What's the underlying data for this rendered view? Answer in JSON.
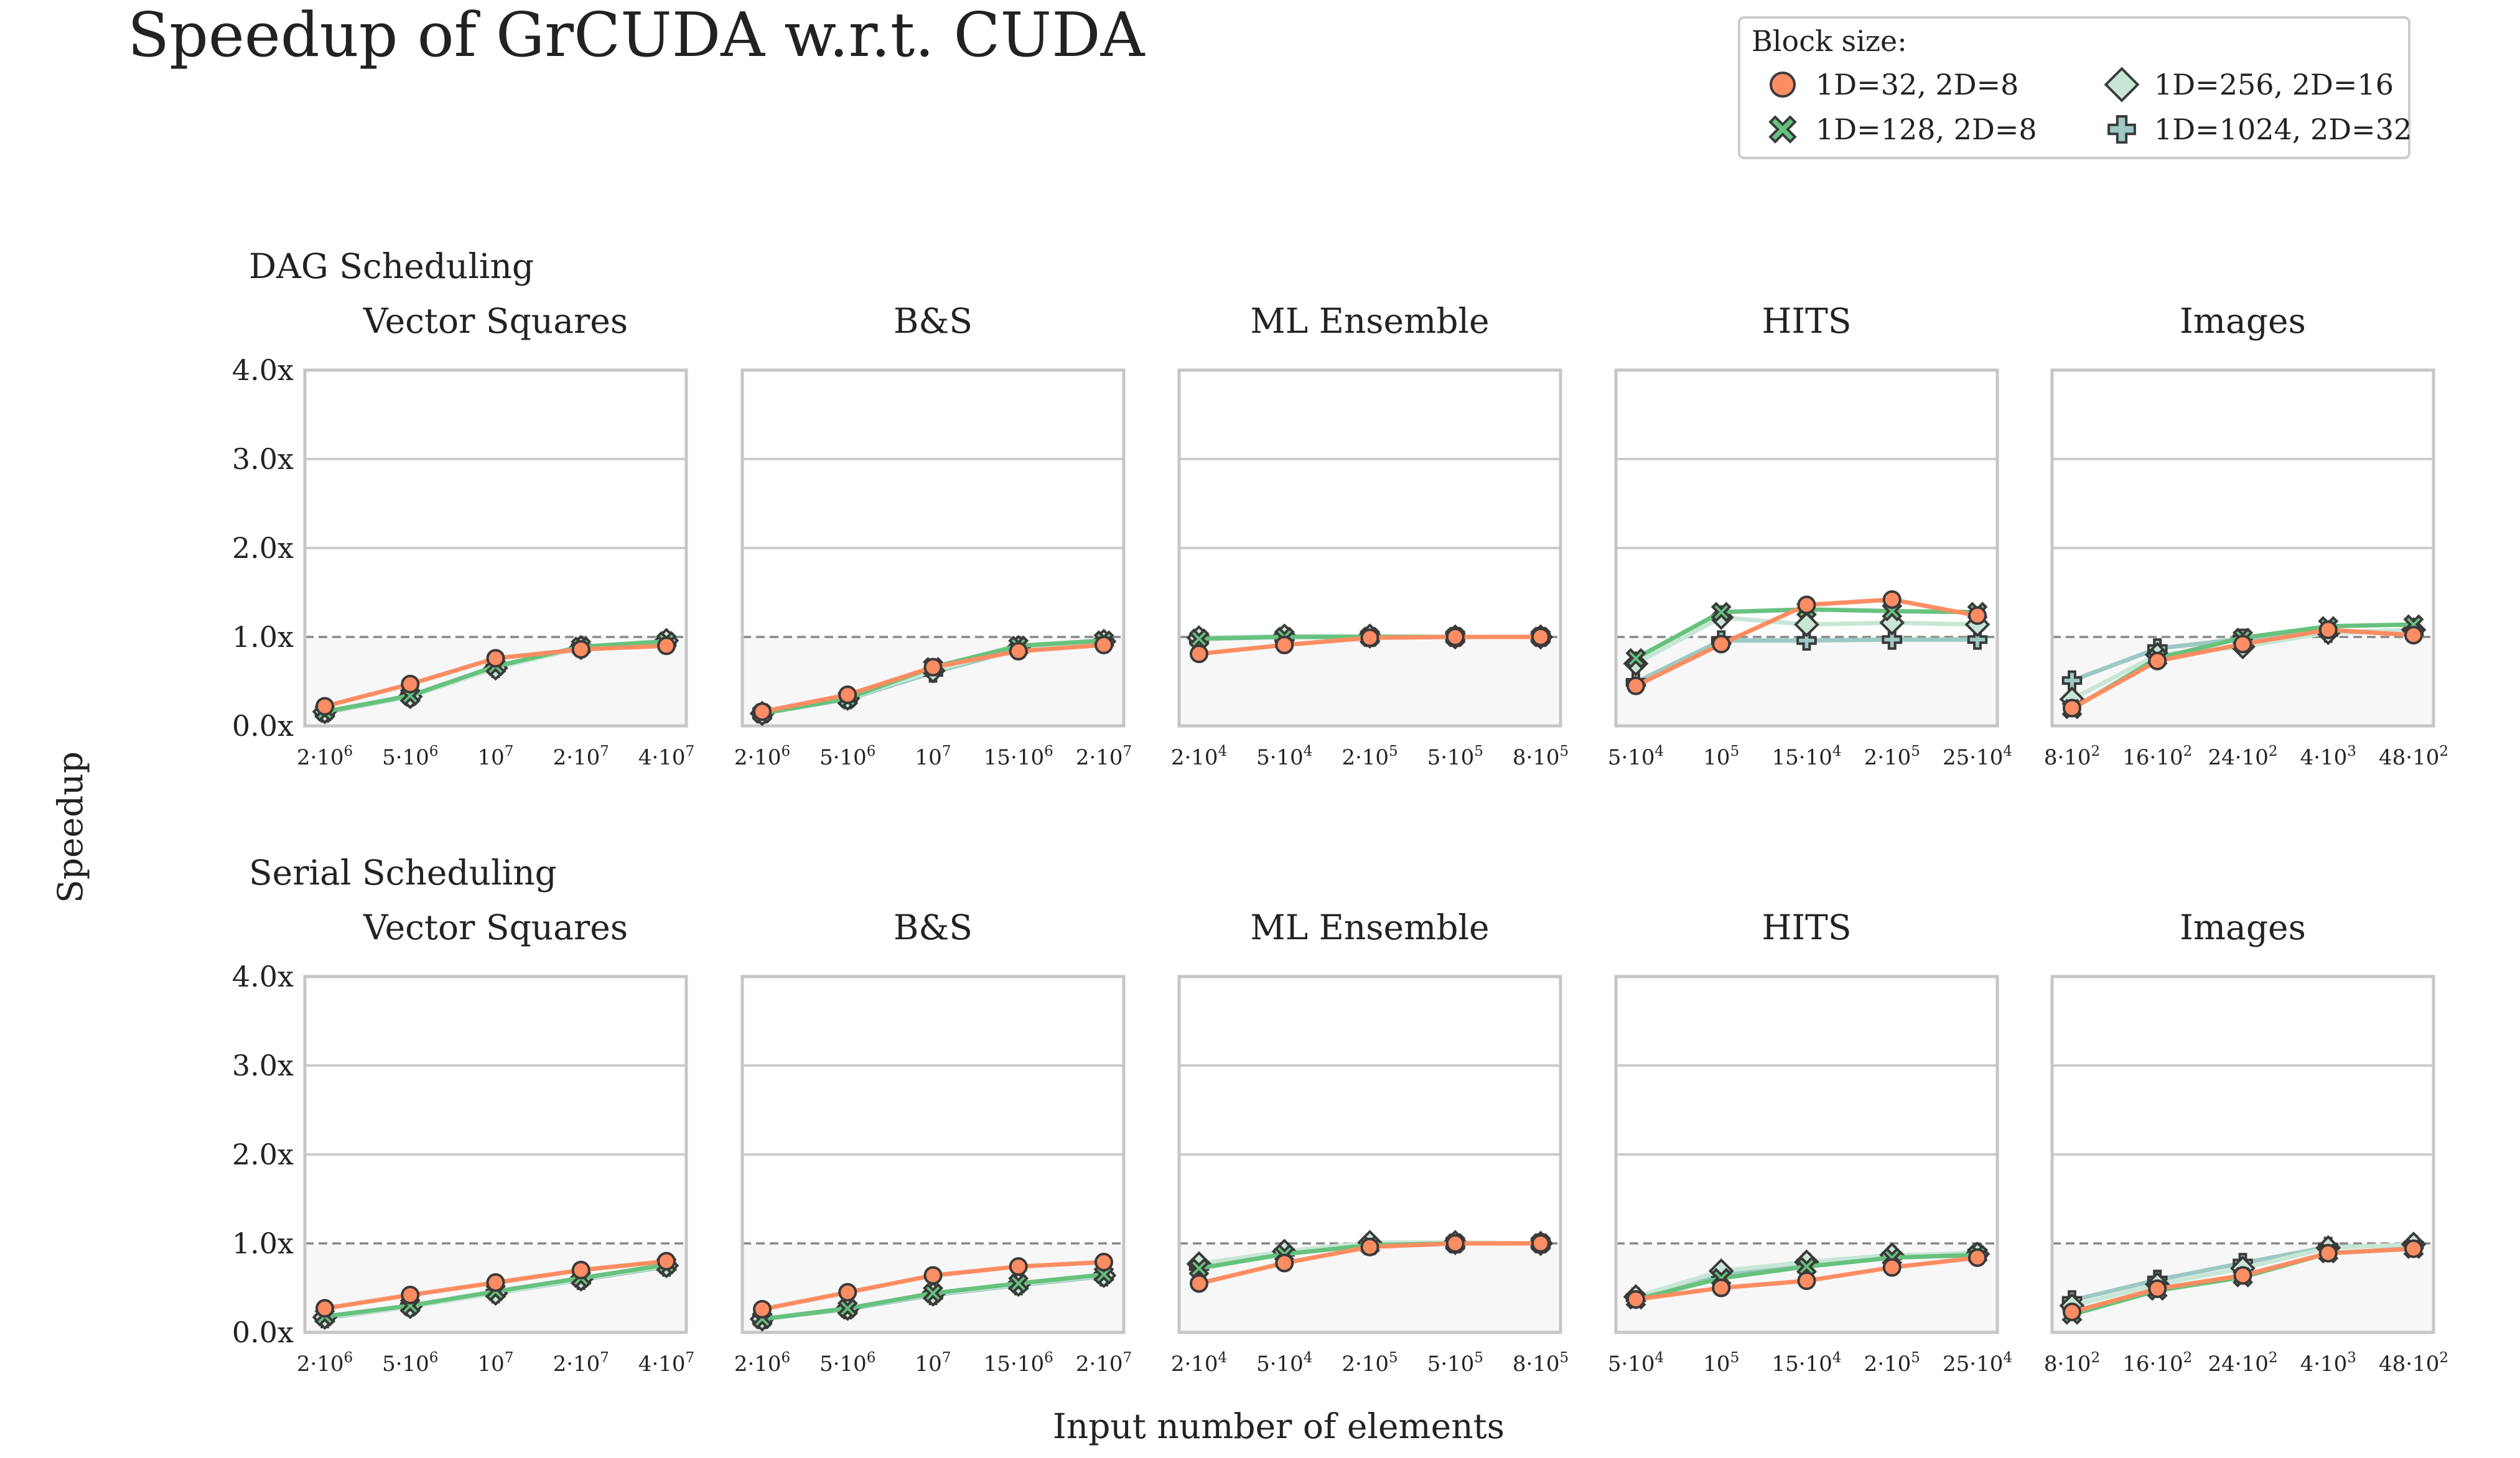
{
  "title": "Speedup of GrCUDA w.r.t. CUDA",
  "ylabel": "Speedup",
  "xlabel": "Input number of elements",
  "legend": {
    "title": "Block size:",
    "placement": "top-right",
    "entries": [
      {
        "key": "b32",
        "label": "1D=32, 2D=8",
        "marker": "circle",
        "color": "#fc8d62"
      },
      {
        "key": "b128",
        "label": "1D=128, 2D=8",
        "marker": "x",
        "color": "#66c27d"
      },
      {
        "key": "b256",
        "label": "1D=256, 2D=16",
        "marker": "diamond",
        "color": "#c8e6d6"
      },
      {
        "key": "b1024",
        "label": "1D=1024, 2D=32",
        "marker": "plus",
        "color": "#9cc9c3"
      }
    ]
  },
  "chart_data": {
    "type": "line",
    "ylim": [
      0,
      4
    ],
    "yticks": [
      "0.0x",
      "1.0x",
      "2.0x",
      "3.0x",
      "4.0x"
    ],
    "ytick_values": [
      0,
      1,
      2,
      3,
      4
    ],
    "reference_line": 1.0,
    "grid": "horizontal",
    "rows": [
      {
        "label": "DAG Scheduling",
        "panels": [
          {
            "title": "Vector Squares",
            "xticks": [
              {
                "b": "2·10",
                "e": "6"
              },
              {
                "b": "5·10",
                "e": "6"
              },
              {
                "b": "10",
                "e": "7"
              },
              {
                "b": "2·10",
                "e": "7"
              },
              {
                "b": "4·10",
                "e": "7"
              }
            ],
            "series": {
              "b32": [
                0.22,
                0.47,
                0.76,
                0.86,
                0.9
              ],
              "b128": [
                0.16,
                0.34,
                0.67,
                0.89,
                0.95
              ],
              "b256": [
                0.16,
                0.33,
                0.65,
                0.88,
                0.96
              ],
              "b1024": [
                0.15,
                0.33,
                0.65,
                0.88,
                0.95
              ]
            }
          },
          {
            "title": "B&S",
            "xticks": [
              {
                "b": "2·10",
                "e": "6"
              },
              {
                "b": "5·10",
                "e": "6"
              },
              {
                "b": "10",
                "e": "7"
              },
              {
                "b": "15·10",
                "e": "6"
              },
              {
                "b": "2·10",
                "e": "7"
              }
            ],
            "series": {
              "b32": [
                0.16,
                0.35,
                0.66,
                0.84,
                0.91
              ],
              "b128": [
                0.14,
                0.31,
                0.66,
                0.9,
                0.96
              ],
              "b256": [
                0.14,
                0.31,
                0.62,
                0.88,
                0.95
              ],
              "b1024": [
                0.14,
                0.3,
                0.6,
                0.86,
                0.94
              ]
            }
          },
          {
            "title": "ML Ensemble",
            "xticks": [
              {
                "b": "2·10",
                "e": "4"
              },
              {
                "b": "5·10",
                "e": "4"
              },
              {
                "b": "2·10",
                "e": "5"
              },
              {
                "b": "5·10",
                "e": "5"
              },
              {
                "b": "8·10",
                "e": "5"
              }
            ],
            "series": {
              "b32": [
                0.81,
                0.91,
                0.99,
                1.0,
                1.0
              ],
              "b128": [
                0.98,
                1.0,
                1.0,
                1.0,
                1.0
              ],
              "b256": [
                0.99,
                1.01,
                1.01,
                1.0,
                1.0
              ],
              "b1024": [
                0.98,
                1.0,
                1.0,
                1.0,
                1.0
              ]
            }
          },
          {
            "title": "HITS",
            "xticks": [
              {
                "b": "5·10",
                "e": "4"
              },
              {
                "b": "10",
                "e": "5"
              },
              {
                "b": "15·10",
                "e": "4"
              },
              {
                "b": "2·10",
                "e": "5"
              },
              {
                "b": "25·10",
                "e": "4"
              }
            ],
            "series": {
              "b32": [
                0.45,
                0.92,
                1.36,
                1.42,
                1.24
              ],
              "b128": [
                0.76,
                1.28,
                1.31,
                1.29,
                1.28
              ],
              "b256": [
                0.7,
                1.22,
                1.14,
                1.16,
                1.14
              ],
              "b1024": [
                0.49,
                0.96,
                0.96,
                0.97,
                0.97
              ]
            }
          },
          {
            "title": "Images",
            "xticks": [
              {
                "b": "8·10",
                "e": "2"
              },
              {
                "b": "16·10",
                "e": "2"
              },
              {
                "b": "24·10",
                "e": "2"
              },
              {
                "b": "4·10",
                "e": "3"
              },
              {
                "b": "48·10",
                "e": "2"
              }
            ],
            "series": {
              "b32": [
                0.2,
                0.73,
                0.92,
                1.08,
                1.02
              ],
              "b128": [
                0.19,
                0.76,
                0.99,
                1.12,
                1.14
              ],
              "b256": [
                0.3,
                0.8,
                0.89,
                1.05,
                1.08
              ],
              "b1024": [
                0.51,
                0.87,
                0.98,
                1.05,
                1.06
              ]
            }
          }
        ]
      },
      {
        "label": "Serial Scheduling",
        "panels": [
          {
            "title": "Vector Squares",
            "xticks": [
              {
                "b": "2·10",
                "e": "6"
              },
              {
                "b": "5·10",
                "e": "6"
              },
              {
                "b": "10",
                "e": "7"
              },
              {
                "b": "2·10",
                "e": "7"
              },
              {
                "b": "4·10",
                "e": "7"
              }
            ],
            "series": {
              "b32": [
                0.27,
                0.42,
                0.56,
                0.7,
                0.8
              ],
              "b128": [
                0.18,
                0.3,
                0.46,
                0.61,
                0.76
              ],
              "b256": [
                0.17,
                0.29,
                0.44,
                0.6,
                0.75
              ],
              "b1024": [
                0.16,
                0.29,
                0.44,
                0.59,
                0.74
              ]
            }
          },
          {
            "title": "B&S",
            "xticks": [
              {
                "b": "2·10",
                "e": "6"
              },
              {
                "b": "5·10",
                "e": "6"
              },
              {
                "b": "10",
                "e": "7"
              },
              {
                "b": "15·10",
                "e": "6"
              },
              {
                "b": "2·10",
                "e": "7"
              }
            ],
            "series": {
              "b32": [
                0.26,
                0.45,
                0.64,
                0.74,
                0.79
              ],
              "b128": [
                0.15,
                0.27,
                0.44,
                0.55,
                0.65
              ],
              "b256": [
                0.15,
                0.27,
                0.43,
                0.54,
                0.64
              ],
              "b1024": [
                0.15,
                0.26,
                0.42,
                0.53,
                0.63
              ]
            }
          },
          {
            "title": "ML Ensemble",
            "xticks": [
              {
                "b": "2·10",
                "e": "4"
              },
              {
                "b": "5·10",
                "e": "4"
              },
              {
                "b": "2·10",
                "e": "5"
              },
              {
                "b": "5·10",
                "e": "5"
              },
              {
                "b": "8·10",
                "e": "5"
              }
            ],
            "series": {
              "b32": [
                0.55,
                0.78,
                0.96,
                1.0,
                1.0
              ],
              "b128": [
                0.72,
                0.88,
                0.98,
                1.0,
                1.0
              ],
              "b256": [
                0.77,
                0.91,
                1.01,
                1.01,
                1.0
              ],
              "b1024": [
                0.74,
                0.9,
                0.99,
                1.0,
                1.0
              ]
            }
          },
          {
            "title": "HITS",
            "xticks": [
              {
                "b": "5·10",
                "e": "4"
              },
              {
                "b": "10",
                "e": "5"
              },
              {
                "b": "15·10",
                "e": "4"
              },
              {
                "b": "2·10",
                "e": "5"
              },
              {
                "b": "25·10",
                "e": "4"
              }
            ],
            "series": {
              "b32": [
                0.37,
                0.5,
                0.58,
                0.73,
                0.84
              ],
              "b128": [
                0.37,
                0.61,
                0.74,
                0.84,
                0.87
              ],
              "b256": [
                0.4,
                0.69,
                0.79,
                0.87,
                0.88
              ],
              "b1024": [
                0.39,
                0.66,
                0.78,
                0.86,
                0.89
              ]
            }
          },
          {
            "title": "Images",
            "xticks": [
              {
                "b": "8·10",
                "e": "2"
              },
              {
                "b": "16·10",
                "e": "2"
              },
              {
                "b": "24·10",
                "e": "2"
              },
              {
                "b": "4·10",
                "e": "3"
              },
              {
                "b": "48·10",
                "e": "2"
              }
            ],
            "series": {
              "b32": [
                0.23,
                0.49,
                0.64,
                0.89,
                0.94
              ],
              "b128": [
                0.2,
                0.47,
                0.62,
                0.89,
                0.94
              ],
              "b256": [
                0.3,
                0.54,
                0.72,
                0.95,
                0.99
              ],
              "b1024": [
                0.36,
                0.59,
                0.78,
                0.96,
                0.98
              ]
            }
          }
        ]
      }
    ]
  }
}
